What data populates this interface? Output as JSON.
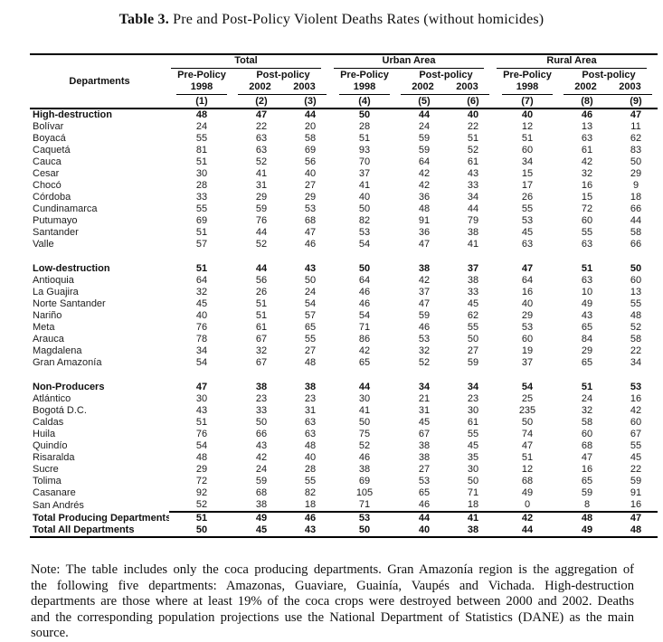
{
  "title": {
    "bold": "Table 3.",
    "rest": " Pre and Post-Policy Violent Deaths Rates (without homicides)"
  },
  "table": {
    "departments_header": "Departments",
    "groups": [
      {
        "label": "Total"
      },
      {
        "label": "Urban Area"
      },
      {
        "label": "Rural Area"
      }
    ],
    "subheaders": {
      "pre": "Pre-Policy",
      "post": "Post-policy"
    },
    "years": [
      "1998",
      "2002",
      "2003"
    ],
    "col_numbers": [
      "(1)",
      "(2)",
      "(3)",
      "(4)",
      "(5)",
      "(6)",
      "(7)",
      "(8)",
      "(9)"
    ],
    "sections": [
      {
        "header_row": {
          "label": "High-destruction",
          "values": [
            48,
            47,
            44,
            50,
            44,
            40,
            40,
            46,
            47
          ]
        },
        "rows": [
          {
            "label": "Bolívar",
            "values": [
              24,
              22,
              20,
              28,
              24,
              22,
              12,
              13,
              11
            ]
          },
          {
            "label": "Boyacá",
            "values": [
              55,
              63,
              58,
              51,
              59,
              51,
              51,
              63,
              62
            ]
          },
          {
            "label": "Caquetá",
            "values": [
              81,
              63,
              69,
              93,
              59,
              52,
              60,
              61,
              83
            ]
          },
          {
            "label": "Cauca",
            "values": [
              51,
              52,
              56,
              70,
              64,
              61,
              34,
              42,
              50
            ]
          },
          {
            "label": "Cesar",
            "values": [
              30,
              41,
              40,
              37,
              42,
              43,
              15,
              32,
              29
            ]
          },
          {
            "label": "Chocó",
            "values": [
              28,
              31,
              27,
              41,
              42,
              33,
              17,
              16,
              9
            ]
          },
          {
            "label": "Córdoba",
            "values": [
              33,
              29,
              29,
              40,
              36,
              34,
              26,
              15,
              18
            ]
          },
          {
            "label": "Cundinamarca",
            "values": [
              55,
              59,
              53,
              50,
              48,
              44,
              55,
              72,
              66
            ]
          },
          {
            "label": "Putumayo",
            "values": [
              69,
              76,
              68,
              82,
              91,
              79,
              53,
              60,
              44
            ]
          },
          {
            "label": "Santander",
            "values": [
              51,
              44,
              47,
              53,
              36,
              38,
              45,
              55,
              58
            ]
          },
          {
            "label": "Valle",
            "values": [
              57,
              52,
              46,
              54,
              47,
              41,
              63,
              63,
              66
            ]
          }
        ]
      },
      {
        "header_row": {
          "label": "Low-destruction",
          "values": [
            51,
            44,
            43,
            50,
            38,
            37,
            47,
            51,
            50
          ]
        },
        "rows": [
          {
            "label": "Antioquia",
            "values": [
              64,
              56,
              50,
              64,
              42,
              38,
              64,
              63,
              60
            ]
          },
          {
            "label": "La Guajira",
            "values": [
              32,
              26,
              24,
              46,
              37,
              33,
              16,
              10,
              13
            ]
          },
          {
            "label": "Norte Santander",
            "values": [
              45,
              51,
              54,
              46,
              47,
              45,
              40,
              49,
              55
            ]
          },
          {
            "label": "Nariño",
            "values": [
              40,
              51,
              57,
              54,
              59,
              62,
              29,
              43,
              48
            ]
          },
          {
            "label": "Meta",
            "values": [
              76,
              61,
              65,
              71,
              46,
              55,
              53,
              65,
              52
            ]
          },
          {
            "label": "Arauca",
            "values": [
              78,
              67,
              55,
              86,
              53,
              50,
              60,
              84,
              58
            ]
          },
          {
            "label": "Magdalena",
            "values": [
              34,
              32,
              27,
              42,
              32,
              27,
              19,
              29,
              22
            ]
          },
          {
            "label": "Gran Amazonía",
            "values": [
              54,
              67,
              48,
              65,
              52,
              59,
              37,
              65,
              34
            ]
          }
        ]
      },
      {
        "header_row": {
          "label": "Non-Producers",
          "values": [
            47,
            38,
            38,
            44,
            34,
            34,
            54,
            51,
            53
          ]
        },
        "rows": [
          {
            "label": "Atlántico",
            "values": [
              30,
              23,
              23,
              30,
              21,
              23,
              25,
              24,
              16
            ]
          },
          {
            "label": "Bogotá D.C.",
            "values": [
              43,
              33,
              31,
              41,
              31,
              30,
              235,
              32,
              42
            ]
          },
          {
            "label": "Caldas",
            "values": [
              51,
              50,
              63,
              50,
              45,
              61,
              50,
              58,
              60
            ]
          },
          {
            "label": "Huila",
            "values": [
              76,
              66,
              63,
              75,
              67,
              55,
              74,
              60,
              67
            ]
          },
          {
            "label": "Quindío",
            "values": [
              54,
              43,
              48,
              52,
              38,
              45,
              47,
              68,
              55
            ]
          },
          {
            "label": "Risaralda",
            "values": [
              48,
              42,
              40,
              46,
              38,
              35,
              51,
              47,
              45
            ]
          },
          {
            "label": "Sucre",
            "values": [
              29,
              24,
              28,
              38,
              27,
              30,
              12,
              16,
              22
            ]
          },
          {
            "label": "Tolima",
            "values": [
              72,
              59,
              55,
              69,
              53,
              50,
              68,
              65,
              59
            ]
          },
          {
            "label": "Casanare",
            "values": [
              92,
              68,
              82,
              105,
              65,
              71,
              49,
              59,
              91
            ]
          },
          {
            "label": "San Andrés",
            "values": [
              52,
              38,
              18,
              71,
              46,
              18,
              0,
              8,
              16
            ]
          }
        ]
      }
    ],
    "total_rows": [
      {
        "label": "Total Producing Departments",
        "values": [
          51,
          49,
          46,
          53,
          44,
          41,
          42,
          48,
          47
        ]
      },
      {
        "label": "Total All Departments",
        "values": [
          50,
          45,
          43,
          50,
          40,
          38,
          44,
          49,
          48
        ]
      }
    ]
  },
  "note": {
    "text": "Note: The table includes only the coca producing departments. Gran Amazonía region is the aggregation of the following five departments: Amazonas, Guaviare, Guainía, Vaupés and Vichada. High-destruction departments are those where at least 19% of the coca crops were destroyed between 2000 and 2002. Deaths and the corresponding population projections use the National Department of Statistics (DANE) as the main source."
  }
}
